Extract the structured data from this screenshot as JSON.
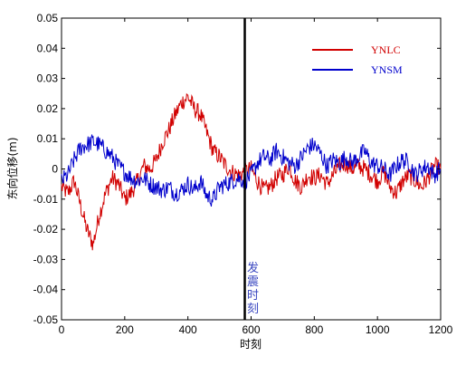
{
  "chart_data": {
    "type": "line",
    "title": "",
    "xlabel": "时刻",
    "ylabel": "东向位移(m)",
    "xlim": [
      0,
      1200
    ],
    "ylim": [
      -0.05,
      0.05
    ],
    "x_ticks": [
      "0",
      "200",
      "400",
      "600",
      "800",
      "1000",
      "1200"
    ],
    "y_ticks": [
      "-0.05",
      "-0.04",
      "-0.03",
      "-0.02",
      "-0.01",
      "0",
      "0.01",
      "0.02",
      "0.03",
      "0.04",
      "0.05"
    ],
    "grid": false,
    "legend_position": "top-right",
    "series": [
      {
        "name": "YNLC",
        "color": "#d10000",
        "x": [
          0,
          20,
          40,
          60,
          80,
          100,
          120,
          140,
          160,
          180,
          200,
          220,
          240,
          260,
          280,
          300,
          320,
          340,
          360,
          380,
          400,
          420,
          440,
          460,
          480,
          500,
          520,
          540,
          560,
          580,
          600,
          620,
          640,
          660,
          680,
          700,
          720,
          740,
          760,
          780,
          800,
          820,
          840,
          860,
          880,
          900,
          920,
          940,
          960,
          980,
          1000,
          1020,
          1040,
          1060,
          1080,
          1100,
          1120,
          1140,
          1160,
          1180,
          1200
        ],
        "values": [
          -0.006,
          -0.008,
          -0.004,
          -0.012,
          -0.02,
          -0.025,
          -0.015,
          -0.008,
          -0.003,
          -0.005,
          -0.01,
          -0.008,
          -0.004,
          0.001,
          0.0,
          0.003,
          0.009,
          0.013,
          0.018,
          0.022,
          0.024,
          0.02,
          0.018,
          0.012,
          0.006,
          0.004,
          0.001,
          -0.001,
          -0.002,
          -0.001,
          0.0,
          -0.004,
          -0.007,
          -0.006,
          -0.003,
          -0.002,
          0.001,
          -0.004,
          -0.006,
          -0.002,
          -0.003,
          -0.002,
          -0.005,
          -0.002,
          0.001,
          0.002,
          0.0,
          0.001,
          0.0,
          -0.002,
          -0.004,
          -0.001,
          -0.006,
          -0.008,
          -0.004,
          -0.002,
          -0.004,
          -0.006,
          -0.003,
          0.001,
          0.0
        ]
      },
      {
        "name": "YNSM",
        "color": "#0000cc",
        "x": [
          0,
          20,
          40,
          60,
          80,
          100,
          120,
          140,
          160,
          180,
          200,
          220,
          240,
          260,
          280,
          300,
          320,
          340,
          360,
          380,
          400,
          420,
          440,
          460,
          480,
          500,
          520,
          540,
          560,
          580,
          600,
          620,
          640,
          660,
          680,
          700,
          720,
          740,
          760,
          780,
          800,
          820,
          840,
          860,
          880,
          900,
          920,
          940,
          960,
          980,
          1000,
          1020,
          1040,
          1060,
          1080,
          1100,
          1120,
          1140,
          1160,
          1180,
          1200
        ],
        "values": [
          -0.004,
          -0.002,
          0.003,
          0.007,
          0.008,
          0.009,
          0.008,
          0.006,
          0.004,
          0.001,
          -0.001,
          -0.003,
          -0.004,
          -0.003,
          -0.005,
          -0.006,
          -0.007,
          -0.006,
          -0.008,
          -0.007,
          -0.005,
          -0.007,
          -0.004,
          -0.009,
          -0.01,
          -0.006,
          -0.005,
          -0.004,
          -0.003,
          -0.004,
          -0.002,
          0.002,
          0.004,
          0.003,
          0.006,
          0.004,
          0.002,
          0.001,
          0.004,
          0.007,
          0.008,
          0.005,
          0.001,
          0.003,
          0.002,
          0.004,
          0.002,
          0.004,
          0.006,
          0.002,
          0.001,
          0.0,
          -0.002,
          0.001,
          0.003,
          0.002,
          -0.002,
          0.0,
          0.001,
          -0.002,
          0.0
        ]
      }
    ],
    "annotations": [
      {
        "text": "发震时刻",
        "x": 580
      }
    ],
    "event_line_x": 580,
    "event_line_color": "#000000"
  }
}
